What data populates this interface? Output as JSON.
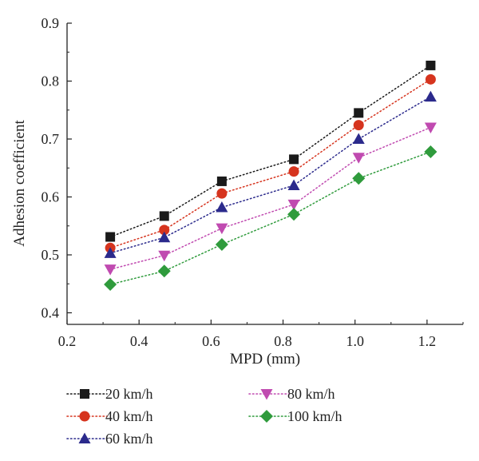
{
  "chart_data": {
    "type": "scatter",
    "title": "",
    "xlabel": "MPD (mm)",
    "ylabel": "Adhesion coefficient",
    "xlim": [
      0.2,
      1.3
    ],
    "ylim": [
      0.38,
      0.9
    ],
    "xticks": [
      0.2,
      0.4,
      0.6,
      0.8,
      1.0,
      1.2
    ],
    "xtick_labels": [
      "0.2",
      "0.4",
      "0.6",
      "0.8",
      "1.0",
      "1.2"
    ],
    "yticks": [
      0.4,
      0.5,
      0.6,
      0.7,
      0.8,
      0.9
    ],
    "ytick_labels": [
      "0.4",
      "0.5",
      "0.6",
      "0.7",
      "0.8",
      "0.9"
    ],
    "grid": false,
    "legend_position": "bottom",
    "x": [
      0.32,
      0.47,
      0.63,
      0.83,
      1.01,
      1.21
    ],
    "series": [
      {
        "name": "20 km/h",
        "marker": "square",
        "color": "#1a1a1a",
        "values": [
          0.531,
          0.567,
          0.627,
          0.665,
          0.745,
          0.827
        ]
      },
      {
        "name": "40 km/h",
        "marker": "circle",
        "color": "#d6341e",
        "values": [
          0.512,
          0.543,
          0.606,
          0.644,
          0.724,
          0.803
        ]
      },
      {
        "name": "60 km/h",
        "marker": "triangle-up",
        "color": "#2b2a8c",
        "values": [
          0.503,
          0.53,
          0.582,
          0.62,
          0.7,
          0.773
        ]
      },
      {
        "name": "80 km/h",
        "marker": "triangle-down",
        "color": "#c04ab0",
        "values": [
          0.475,
          0.499,
          0.546,
          0.587,
          0.668,
          0.72
        ]
      },
      {
        "name": "100 km/h",
        "marker": "diamond",
        "color": "#2f9b3c",
        "values": [
          0.449,
          0.472,
          0.518,
          0.57,
          0.632,
          0.678
        ]
      }
    ]
  }
}
